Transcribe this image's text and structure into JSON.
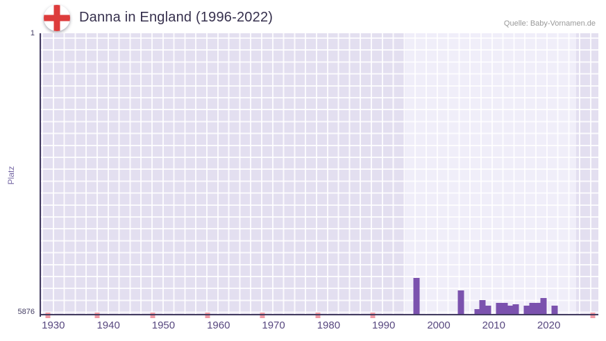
{
  "header": {
    "title": "Danna in England (1996-2022)",
    "source": "Quelle: Baby-Vornamen.de",
    "flag": "england-flag-icon"
  },
  "chart_data": {
    "type": "bar",
    "title": "Danna in England (1996-2022)",
    "xlabel": "",
    "ylabel": "Platz",
    "y_axis": {
      "min": 1,
      "max": 5876,
      "top_label": "1",
      "bottom_label": "5876",
      "inverted": true
    },
    "x_range": [
      1927.5,
      2029
    ],
    "x_ticks": [
      "1930",
      "1940",
      "1950",
      "1960",
      "1970",
      "1980",
      "1990",
      "2000",
      "2010",
      "2020"
    ],
    "highlight_band": {
      "from": 1994,
      "to": 2025
    },
    "grid": true,
    "legend_position": "none",
    "series": [
      {
        "name": "Platz",
        "color": "#7b52ae",
        "points": [
          {
            "year": 1996,
            "rank": 5103
          },
          {
            "year": 2004,
            "rank": 5351
          },
          {
            "year": 2007,
            "rank": 5745
          },
          {
            "year": 2008,
            "rank": 5558
          },
          {
            "year": 2009,
            "rank": 5672
          },
          {
            "year": 2011,
            "rank": 5615
          },
          {
            "year": 2012,
            "rank": 5615
          },
          {
            "year": 2013,
            "rank": 5672
          },
          {
            "year": 2014,
            "rank": 5643
          },
          {
            "year": 2016,
            "rank": 5672
          },
          {
            "year": 2017,
            "rank": 5615
          },
          {
            "year": 2018,
            "rank": 5615
          },
          {
            "year": 2019,
            "rank": 5514
          },
          {
            "year": 2021,
            "rank": 5672
          }
        ]
      }
    ],
    "no_data_markers": {
      "years": [
        1929,
        1938,
        1948,
        1958,
        1968,
        1978,
        1988,
        2028
      ]
    }
  },
  "colors": {
    "bar": "#7b52ae",
    "marker": "#f19ba5",
    "plot_bg": "#e3dff0",
    "band_bg": "#f0eef9",
    "axis_line": "#413a5e",
    "title_text": "#36304d",
    "tick_text": "#57477f",
    "ytick_text": "#423c62",
    "ylabel_text": "#7668a5",
    "source_text": "#999999",
    "flag_red": "#dd3c3c"
  }
}
